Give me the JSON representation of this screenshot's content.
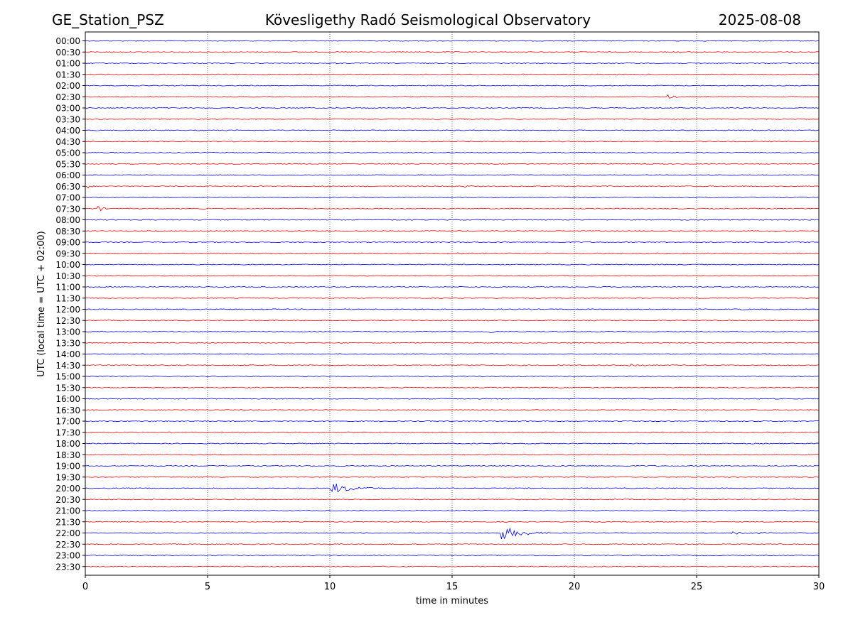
{
  "header": {
    "station": "GE_Station_PSZ",
    "title": "Kövesligethy Radó Seismological Observatory",
    "date": "2025-08-08"
  },
  "chart_data": {
    "type": "line",
    "title": "Kövesligethy Radó Seismological Observatory",
    "xlabel": "time in minutes",
    "ylabel": "UTC (local time = UTC + 02:00)",
    "xlim": [
      0,
      30
    ],
    "xticks": [
      0,
      5,
      10,
      15,
      20,
      25,
      30
    ],
    "grid": "vertical dotted lines at x ticks",
    "series_colors": [
      "#0000ff",
      "#ff0000"
    ],
    "color_rule": "hours alternate: HH:00 rows blue, HH:30 rows red",
    "rows": [
      "00:00",
      "00:30",
      "01:00",
      "01:30",
      "02:00",
      "02:30",
      "03:00",
      "03:30",
      "04:00",
      "04:30",
      "05:00",
      "05:30",
      "06:00",
      "06:30",
      "07:00",
      "07:30",
      "08:00",
      "08:30",
      "09:00",
      "09:30",
      "10:00",
      "10:30",
      "11:00",
      "11:30",
      "12:00",
      "12:30",
      "13:00",
      "13:30",
      "14:00",
      "14:30",
      "15:00",
      "15:30",
      "16:00",
      "16:30",
      "17:00",
      "17:30",
      "18:00",
      "18:30",
      "19:00",
      "19:30",
      "20:00",
      "20:30",
      "21:00",
      "21:30",
      "22:00",
      "22:30",
      "23:00",
      "23:30"
    ],
    "events": [
      {
        "row": 5,
        "start": 23.8,
        "duration": 1.2,
        "amplitude": 3.0
      },
      {
        "row": 5,
        "start": 2.6,
        "duration": 0.6,
        "amplitude": 1.5
      },
      {
        "row": 13,
        "start": 0.1,
        "duration": 0.5,
        "amplitude": 3.5
      },
      {
        "row": 13,
        "start": 15.5,
        "duration": 0.8,
        "amplitude": 2.0
      },
      {
        "row": 15,
        "start": 0.5,
        "duration": 0.6,
        "amplitude": 6.0
      },
      {
        "row": 19,
        "start": 15.2,
        "duration": 1.0,
        "amplitude": 2.0
      },
      {
        "row": 21,
        "start": 0.3,
        "duration": 2.0,
        "amplitude": 1.3
      },
      {
        "row": 21,
        "start": 11.5,
        "duration": 0.3,
        "amplitude": 1.5
      },
      {
        "row": 23,
        "start": 22.4,
        "duration": 1.5,
        "amplitude": 2.0
      },
      {
        "row": 24,
        "start": 26.8,
        "duration": 1.0,
        "amplitude": 1.5
      },
      {
        "row": 26,
        "start": 16.5,
        "duration": 0.6,
        "amplitude": 3.5
      },
      {
        "row": 29,
        "start": 22.2,
        "duration": 2.0,
        "amplitude": 3.0
      },
      {
        "row": 35,
        "start": 28.5,
        "duration": 1.0,
        "amplitude": 1.3
      },
      {
        "row": 40,
        "start": 10.0,
        "duration": 2.5,
        "amplitude": 9.0
      },
      {
        "row": 44,
        "start": 17.0,
        "duration": 2.5,
        "amplitude": 10.0
      },
      {
        "row": 44,
        "start": 26.4,
        "duration": 3.5,
        "amplitude": 3.0
      },
      {
        "row": 44,
        "start": 11.2,
        "duration": 0.5,
        "amplitude": 1.2
      }
    ]
  }
}
